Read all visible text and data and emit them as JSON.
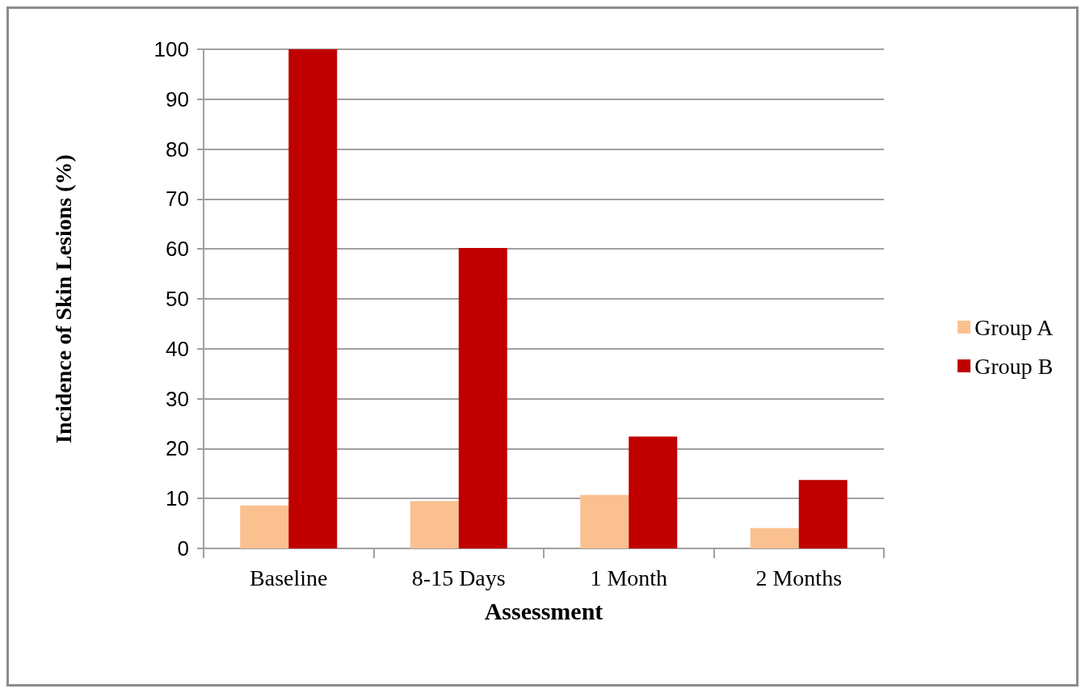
{
  "chart_data": {
    "type": "bar",
    "xlabel": "Assessment",
    "ylabel": "Incidence of Skin Lesions (%)",
    "categories": [
      "Baseline",
      "8-15 Days",
      "1 Month",
      "2 Months"
    ],
    "series": [
      {
        "name": "Group A",
        "color": "#fac090",
        "values": [
          8.6,
          9.5,
          10.7,
          4.1
        ]
      },
      {
        "name": "Group B",
        "color": "#c00000",
        "values": [
          100,
          60.2,
          22.4,
          13.7
        ]
      }
    ],
    "ylim": [
      0,
      100
    ],
    "yticks": [
      0,
      10,
      20,
      30,
      40,
      50,
      60,
      70,
      80,
      90,
      100
    ],
    "grid": "y",
    "legend": "right"
  }
}
